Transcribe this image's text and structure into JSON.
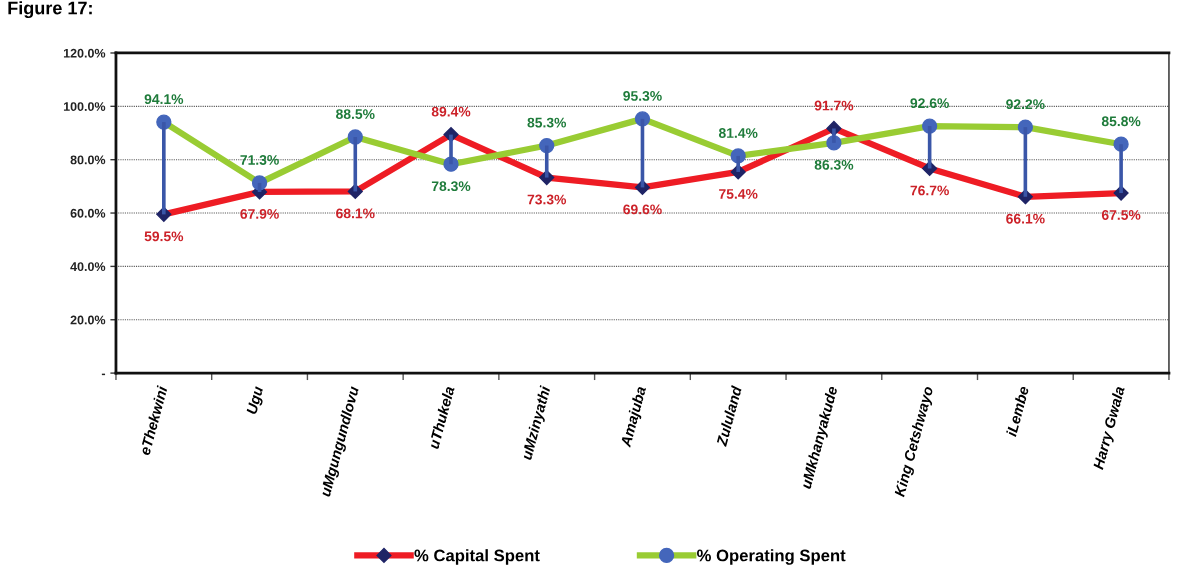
{
  "chart_data": {
    "type": "line",
    "title": "Figure 17:",
    "categories": [
      "eThekwini",
      "Ugu",
      "uMgungundlovu",
      "uThukela",
      "uMzinyathi",
      "Amajuba",
      "Zululand",
      "uMkhanyakude",
      "King Cetshwayo",
      "iLembe",
      "Harry Gwala"
    ],
    "series": [
      {
        "name": "% Capital Spent",
        "color": "#ee1c24",
        "colors": [
          "#1f2466",
          "#1f2466",
          "#1f2466",
          "#1f2466",
          "#1f2466",
          "#1f2466",
          "#1f2466",
          "#1f2466",
          "#1f2466",
          "#1f2466",
          "#1f2466"
        ],
        "marker": "diamond",
        "line_style": "solid",
        "values": [
          59.5,
          67.9,
          68.1,
          89.4,
          73.3,
          69.6,
          75.4,
          91.7,
          76.7,
          66.1,
          67.5
        ],
        "value_labels": [
          "59.5%",
          "67.9%",
          "68.1%",
          "89.4%",
          "73.3%",
          "69.6%",
          "75.4%",
          "91.7%",
          "76.7%",
          "66.1%",
          "67.5%"
        ],
        "errors": [
          [
            59.5,
            94.1
          ],
          [
            67.9,
            71.3
          ],
          [
            68.1,
            88.5
          ],
          [
            78.3,
            89.4
          ],
          [
            73.3,
            85.3
          ],
          [
            69.6,
            95.3
          ],
          [
            75.4,
            81.4
          ],
          [
            86.3,
            91.7
          ],
          [
            76.7,
            92.6
          ],
          [
            66.1,
            92.2
          ],
          [
            67.5,
            85.8
          ]
        ]
      },
      {
        "name": "% Operating Spent",
        "color": "#99cc33",
        "colors": [
          "#4466bb",
          "#4466bb",
          "#4466bb",
          "#4466bb",
          "#4466bb",
          "#4466bb",
          "#4466bb",
          "#4466bb",
          "#4466bb",
          "#4466bb",
          "#4466bb"
        ],
        "marker": "circle",
        "line_style": "solid",
        "values": [
          94.1,
          71.3,
          88.5,
          78.3,
          85.3,
          95.3,
          81.4,
          86.3,
          92.6,
          92.2,
          85.8
        ],
        "value_labels": [
          "94.1%",
          "71.3%",
          "88.5%",
          "78.3%",
          "85.3%",
          "95.3%",
          "81.4%",
          "86.3%",
          "92.6%",
          "92.2%",
          "85.8%"
        ]
      }
    ],
    "ylim": [
      0,
      120
    ],
    "yticks": [
      {
        "value": 0,
        "label": "-"
      },
      {
        "value": 20,
        "label": "20.0%"
      },
      {
        "value": 40,
        "label": "40.0%"
      },
      {
        "value": 60,
        "label": "60.0%"
      },
      {
        "value": 80,
        "label": "80.0%"
      },
      {
        "value": 100,
        "label": "100.0%"
      },
      {
        "value": 120,
        "label": "120.0%"
      }
    ],
    "grid": "y",
    "legend": "bottom"
  }
}
